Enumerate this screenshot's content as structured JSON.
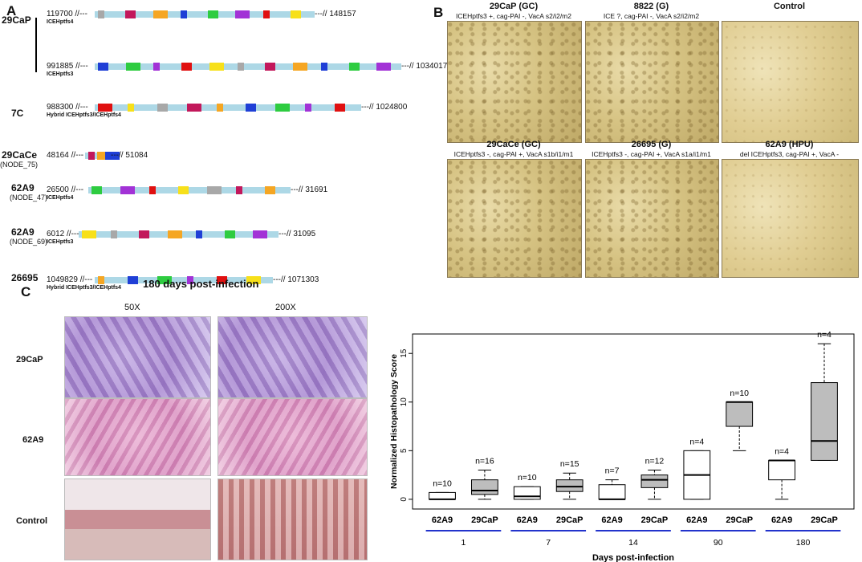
{
  "panels": {
    "a": "A",
    "b": "B",
    "c": "C"
  },
  "panel_a": {
    "rows": [
      {
        "strain": "29CaP",
        "sub": "",
        "start": "119700 //---",
        "end": "---// 148157",
        "island": "ICEHptfs4"
      },
      {
        "strain": "",
        "sub": "",
        "start": "991885 //---",
        "end": "---// 1034017",
        "island": "ICEHptfs3"
      },
      {
        "strain": "7C",
        "sub": "",
        "start": "988300 //---",
        "end": "---// 1024800",
        "island": "Hybrid ICEHptfs3/ICEHptfs4"
      },
      {
        "strain": "29CaCe",
        "sub": "(NODE_75)",
        "start": "48164 //---",
        "end": "---// 51084",
        "island": ""
      },
      {
        "strain": "62A9",
        "sub": "(NODE_47)",
        "start": "26500 //---",
        "end": "---// 31691",
        "island": "ICEHptfs4"
      },
      {
        "strain": "62A9",
        "sub": "(NODE_69)",
        "start": "6012 //---",
        "end": "---// 31095",
        "island": "ICEHptfs3"
      },
      {
        "strain": "26695",
        "sub": "",
        "start": "1049829 //---",
        "end": "---// 1071303",
        "island": "Hybrid ICEHptfs3/ICEHptfs4"
      }
    ],
    "colors": {
      "backbone": "#add8e6",
      "topA": "#f5a623",
      "virB4": "#1f3fd6",
      "parA": "#2ecc40",
      "xerT": "#a8a8a8",
      "virB6": "#c2185b",
      "virD2": "#a232d6",
      "red": "#e01010",
      "yellow": "#f7e01a"
    }
  },
  "panel_b": {
    "tiles": [
      {
        "title": "29CaP (GC)",
        "sub": "ICEHptfs3 +, cag-PAI -, VacA s2/i2/m2"
      },
      {
        "title": "8822 (G)",
        "sub": "ICE ?, cag-PAI -, VacA s2/i2/m2"
      },
      {
        "title": "Control",
        "sub": ""
      },
      {
        "title": "29CaCe (GC)",
        "sub": "ICEHptfs3 -, cag-PAI +, VacA s1b/i1/m1"
      },
      {
        "title": "26695 (G)",
        "sub": "ICEHptfs3 -, cag-PAI +, VacA s1a/i1/m1"
      },
      {
        "title": "62A9 (HPU)",
        "sub": "del ICEHptfs3, cag-PAI +, VacA -"
      }
    ]
  },
  "panel_c": {
    "title": "180 days post-infection",
    "mag_low": "50X",
    "mag_high": "200X",
    "row_labels": [
      "29CaP",
      "62A9",
      "Control"
    ]
  },
  "chart_data": {
    "type": "box",
    "ylabel": "Normalized Histopathology Score",
    "xlabel": "Days post-infection",
    "ylim": [
      -1,
      17
    ],
    "yticks": [
      0,
      5,
      10,
      15
    ],
    "groups": [
      "1",
      "7",
      "14",
      "90",
      "180"
    ],
    "boxes": [
      {
        "day": "1",
        "strain": "62A9",
        "n": "n=10",
        "min": 0,
        "q1": 0,
        "median": 0,
        "q3": 0.7,
        "max": 0.7,
        "fill": "#ffffff"
      },
      {
        "day": "1",
        "strain": "29CaP",
        "n": "n=16",
        "min": 0,
        "q1": 0.5,
        "median": 0.9,
        "q3": 2.0,
        "max": 3.0,
        "fill": "#bdbdbd"
      },
      {
        "day": "7",
        "strain": "62A9",
        "n": "n=10",
        "min": 0,
        "q1": 0,
        "median": 0.3,
        "q3": 1.3,
        "max": 1.3,
        "fill": "#ffffff"
      },
      {
        "day": "7",
        "strain": "29CaP",
        "n": "n=15",
        "min": 0,
        "q1": 0.8,
        "median": 1.3,
        "q3": 2.0,
        "max": 2.7,
        "fill": "#bdbdbd"
      },
      {
        "day": "14",
        "strain": "62A9",
        "n": "n=7",
        "min": 0,
        "q1": 0,
        "median": 0,
        "q3": 1.5,
        "max": 2.0,
        "fill": "#ffffff"
      },
      {
        "day": "14",
        "strain": "29CaP",
        "n": "n=12",
        "min": 0,
        "q1": 1.2,
        "median": 2.0,
        "q3": 2.5,
        "max": 3.0,
        "fill": "#bdbdbd"
      },
      {
        "day": "90",
        "strain": "62A9",
        "n": "n=4",
        "min": 0,
        "q1": 0,
        "median": 2.5,
        "q3": 5.0,
        "max": 5.0,
        "fill": "#ffffff"
      },
      {
        "day": "90",
        "strain": "29CaP",
        "n": "n=10",
        "min": 5.0,
        "q1": 7.5,
        "median": 10.0,
        "q3": 10.0,
        "max": 10.0,
        "fill": "#bdbdbd"
      },
      {
        "day": "180",
        "strain": "62A9",
        "n": "n=4",
        "min": 0,
        "q1": 2.0,
        "median": 4.0,
        "q3": 4.0,
        "max": 4.0,
        "fill": "#ffffff"
      },
      {
        "day": "180",
        "strain": "29CaP",
        "n": "n=4",
        "min": 4.0,
        "q1": 4.0,
        "median": 6.0,
        "q3": 12.0,
        "max": 16.0,
        "fill": "#bdbdbd"
      }
    ]
  }
}
